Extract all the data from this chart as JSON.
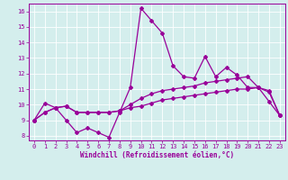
{
  "title": "",
  "xlabel": "Windchill (Refroidissement éolien,°C)",
  "bg_color": "#d4eeed",
  "line_color": "#990099",
  "grid_color": "#ffffff",
  "x_values": [
    0,
    1,
    2,
    3,
    4,
    5,
    6,
    7,
    8,
    9,
    10,
    11,
    12,
    13,
    14,
    15,
    16,
    17,
    18,
    19,
    20,
    21,
    22,
    23
  ],
  "line1": [
    9.0,
    10.1,
    9.8,
    9.0,
    8.2,
    8.5,
    8.2,
    7.9,
    9.5,
    11.1,
    16.2,
    15.4,
    14.6,
    12.5,
    11.8,
    11.7,
    13.1,
    11.8,
    12.4,
    11.9,
    11.1,
    11.1,
    10.2,
    9.3
  ],
  "line2": [
    9.0,
    9.5,
    9.8,
    9.9,
    9.5,
    9.5,
    9.5,
    9.5,
    9.6,
    10.0,
    10.4,
    10.7,
    10.9,
    11.0,
    11.1,
    11.2,
    11.4,
    11.5,
    11.6,
    11.7,
    11.8,
    11.1,
    10.8,
    9.3
  ],
  "line3": [
    9.0,
    9.5,
    9.8,
    9.9,
    9.5,
    9.5,
    9.5,
    9.5,
    9.6,
    9.8,
    9.9,
    10.1,
    10.3,
    10.4,
    10.5,
    10.6,
    10.7,
    10.8,
    10.9,
    11.0,
    11.0,
    11.1,
    10.9,
    9.3
  ],
  "xlim": [
    -0.5,
    23.5
  ],
  "ylim": [
    7.7,
    16.5
  ],
  "yticks": [
    8,
    9,
    10,
    11,
    12,
    13,
    14,
    15,
    16
  ],
  "xticks": [
    0,
    1,
    2,
    3,
    4,
    5,
    6,
    7,
    8,
    9,
    10,
    11,
    12,
    13,
    14,
    15,
    16,
    17,
    18,
    19,
    20,
    21,
    22,
    23
  ],
  "xlabel_fontsize": 5.5,
  "tick_fontsize": 5.0,
  "marker_size": 2.0,
  "line_width": 0.9
}
